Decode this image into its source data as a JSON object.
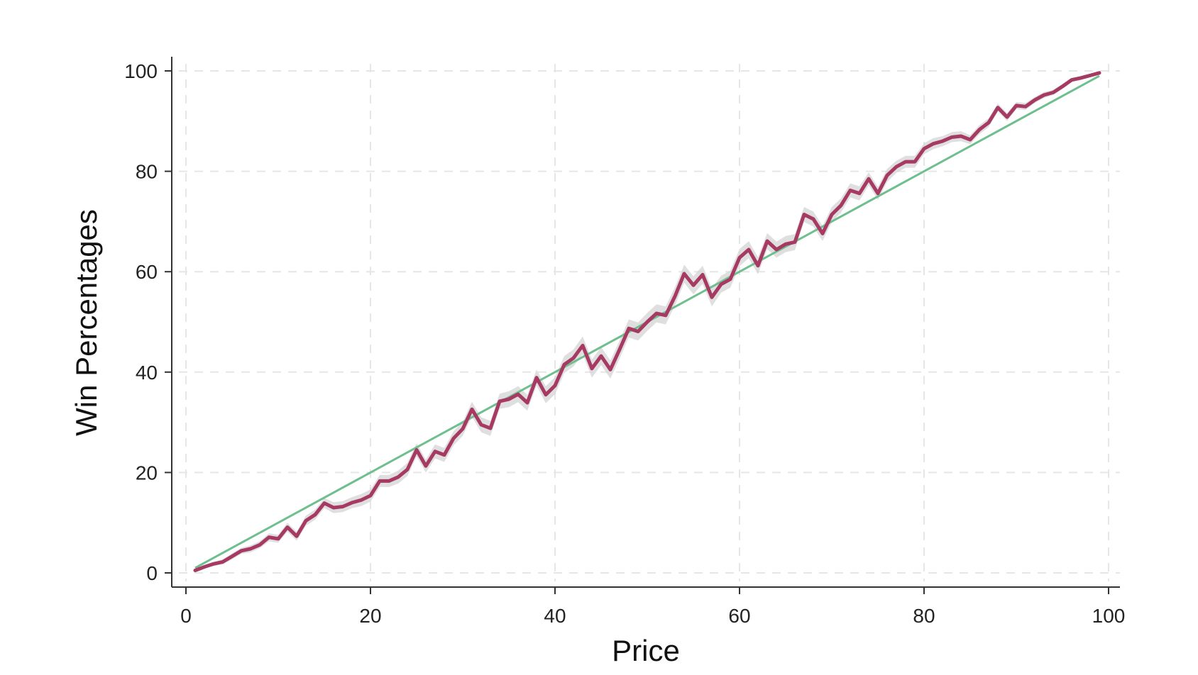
{
  "chart_data": {
    "type": "line",
    "title": "",
    "xlabel": "Price",
    "ylabel": "Win Percentages",
    "xlim": [
      0,
      100
    ],
    "ylim": [
      0,
      100
    ],
    "xticks": [
      0,
      20,
      40,
      60,
      80,
      100
    ],
    "yticks": [
      0,
      20,
      40,
      60,
      80,
      100
    ],
    "grid": true,
    "legend": "none",
    "colors": {
      "series": "#a63a62",
      "reference": "#6fbf8e",
      "band": "#d4d4d4",
      "grid": "#e6e6e6",
      "axis": "#333333"
    },
    "x": [
      1,
      2,
      3,
      4,
      5,
      6,
      7,
      8,
      9,
      10,
      11,
      12,
      13,
      14,
      15,
      16,
      17,
      18,
      19,
      20,
      21,
      22,
      23,
      24,
      25,
      26,
      27,
      28,
      29,
      30,
      31,
      32,
      33,
      34,
      35,
      36,
      37,
      38,
      39,
      40,
      41,
      42,
      43,
      44,
      45,
      46,
      47,
      48,
      49,
      50,
      51,
      52,
      53,
      54,
      55,
      56,
      57,
      58,
      59,
      60,
      61,
      62,
      63,
      64,
      65,
      66,
      67,
      68,
      69,
      70,
      71,
      72,
      73,
      74,
      75,
      76,
      77,
      78,
      79,
      80,
      81,
      82,
      83,
      84,
      85,
      86,
      87,
      88,
      89,
      90,
      91,
      92,
      93,
      94,
      95,
      96,
      97,
      98,
      99
    ],
    "series": [
      {
        "type": "line",
        "values": [
          0.5,
          1.2,
          1.8,
          2.2,
          3.3,
          4.4,
          4.8,
          5.6,
          7.1,
          6.8,
          9.1,
          7.3,
          10.4,
          11.6,
          13.9,
          13.0,
          13.2,
          14.0,
          14.5,
          15.4,
          18.3,
          18.3,
          19.1,
          20.6,
          24.5,
          21.3,
          24.2,
          23.5,
          26.8,
          28.7,
          32.6,
          29.5,
          28.8,
          34.2,
          34.6,
          35.6,
          33.9,
          38.9,
          35.5,
          37.3,
          41.5,
          42.8,
          45.3,
          40.7,
          43.2,
          40.5,
          44.5,
          48.7,
          48.1,
          50.0,
          51.7,
          51.3,
          55.1,
          59.6,
          57.3,
          59.4,
          54.9,
          57.5,
          58.5,
          62.8,
          64.4,
          61.2,
          66.1,
          64.4,
          65.5,
          65.9,
          71.4,
          70.5,
          67.6,
          71.4,
          73.2,
          76.2,
          75.6,
          78.5,
          75.6,
          79.2,
          80.9,
          81.9,
          81.9,
          84.5,
          85.5,
          86.0,
          86.8,
          87.0,
          86.3,
          88.3,
          89.7,
          92.7,
          90.8,
          93.1,
          92.9,
          94.2,
          95.2,
          95.7,
          96.9,
          98.2,
          98.6,
          99.1,
          99.6
        ],
        "ci_halfwidth": [
          0.3,
          0.3,
          0.4,
          0.5,
          0.6,
          0.6,
          0.7,
          0.7,
          0.8,
          0.8,
          0.9,
          0.9,
          1.0,
          1.0,
          1.0,
          1.1,
          1.1,
          1.1,
          1.2,
          1.2,
          1.2,
          1.2,
          1.3,
          1.3,
          1.3,
          1.3,
          1.4,
          1.4,
          1.4,
          1.4,
          1.5,
          1.5,
          1.5,
          1.5,
          1.6,
          1.6,
          1.6,
          1.6,
          1.7,
          1.7,
          1.7,
          1.7,
          1.8,
          1.8,
          1.8,
          1.8,
          1.8,
          1.8,
          1.8,
          1.8,
          1.8,
          1.8,
          1.8,
          1.8,
          1.8,
          1.8,
          1.8,
          1.7,
          1.7,
          1.7,
          1.7,
          1.7,
          1.6,
          1.6,
          1.6,
          1.6,
          1.5,
          1.5,
          1.5,
          1.5,
          1.4,
          1.4,
          1.4,
          1.3,
          1.3,
          1.3,
          1.2,
          1.2,
          1.2,
          1.1,
          1.1,
          1.0,
          1.0,
          1.0,
          0.9,
          0.9,
          0.9,
          0.8,
          0.8,
          0.7,
          0.7,
          0.6,
          0.6,
          0.5,
          0.5,
          0.4,
          0.4,
          0.3,
          0.3
        ]
      },
      {
        "type": "reference-line",
        "x": [
          1,
          99
        ],
        "values": [
          1,
          99
        ]
      }
    ]
  }
}
